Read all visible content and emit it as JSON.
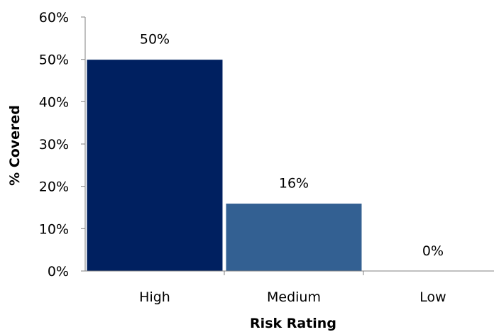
{
  "chart_data": {
    "type": "bar",
    "title": "",
    "xlabel": "Risk Rating",
    "ylabel": "% Covered",
    "categories": [
      "High",
      "Medium",
      "Low"
    ],
    "values": [
      50,
      16,
      0
    ],
    "data_labels": [
      "50%",
      "16%",
      "0%"
    ],
    "bar_colors": [
      "#002060",
      "#336092",
      "#336092"
    ],
    "ylim": [
      0,
      60
    ],
    "yticks": [
      0,
      10,
      20,
      30,
      40,
      50,
      60
    ],
    "ytick_labels": [
      "0%",
      "10%",
      "20%",
      "30%",
      "40%",
      "50%",
      "60%"
    ],
    "grid": false,
    "legend": "none"
  }
}
